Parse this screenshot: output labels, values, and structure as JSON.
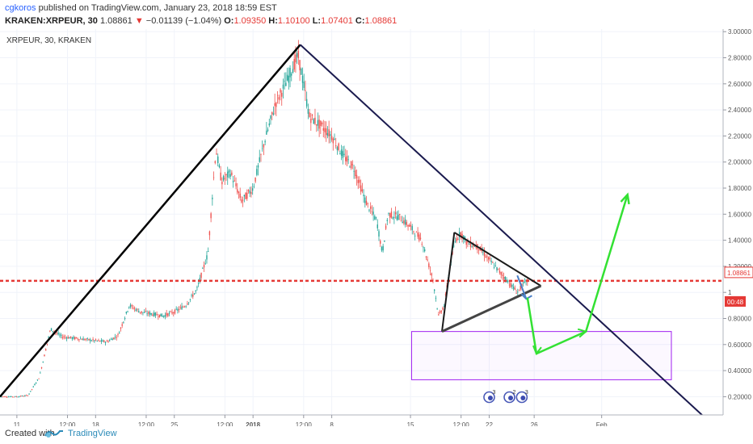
{
  "header": {
    "author": "cgkoros",
    "published_text": "published on TradingView.com, January 23, 2018 18:59 EST",
    "symbol": "KRAKEN:XRPEUR, 30",
    "last": "1.08861",
    "change": "−0.01139 (−1.04%)",
    "open_label": "O:",
    "open": "1.09350",
    "high_label": "H:",
    "high": "1.10100",
    "low_label": "L:",
    "low": "1.07401",
    "close_label": "C:",
    "close": "1.08861"
  },
  "chart_data": {
    "type": "candlestick",
    "legend": "XRPEUR, 30, KRAKEN",
    "ylim": [
      0.06,
      3.02
    ],
    "yticks": [
      "3.00000",
      "2.80000",
      "2.60000",
      "2.40000",
      "2.20000",
      "2.00000",
      "1.80000",
      "1.60000",
      "1.40000",
      "1.20000",
      "1",
      "0.80000",
      "0.60000",
      "0.40000",
      "0.20000"
    ],
    "ytick_values": [
      3.0,
      2.8,
      2.6,
      2.4,
      2.2,
      2.0,
      1.8,
      1.6,
      1.4,
      1.2,
      1.0,
      0.8,
      0.6,
      0.4,
      0.2
    ],
    "xticks": [
      "11",
      "12:00",
      "18",
      "12:00",
      "25",
      "12:00",
      "2018",
      "12:00",
      "8",
      "15",
      "12:00",
      "22",
      "26",
      "Feb"
    ],
    "xtick_days": [
      11,
      15.5,
      18,
      22.5,
      25,
      29.5,
      32,
      36.5,
      39,
      46,
      50.5,
      53,
      57,
      63
    ],
    "xlim": [
      9.5,
      73.8
    ],
    "price_level": 1.08861,
    "price_label": "1.08861",
    "countdown": "00:48",
    "price_path": [
      [
        9.5,
        0.2
      ],
      [
        11,
        0.2
      ],
      [
        12,
        0.21
      ],
      [
        13,
        0.35
      ],
      [
        14,
        0.72
      ],
      [
        15,
        0.66
      ],
      [
        17,
        0.64
      ],
      [
        19,
        0.62
      ],
      [
        20,
        0.67
      ],
      [
        21,
        0.9
      ],
      [
        22,
        0.85
      ],
      [
        24,
        0.82
      ],
      [
        25,
        0.85
      ],
      [
        26,
        0.9
      ],
      [
        27,
        1.02
      ],
      [
        28,
        1.3
      ],
      [
        28.7,
        2.1
      ],
      [
        29.2,
        1.85
      ],
      [
        30,
        1.92
      ],
      [
        31,
        1.7
      ],
      [
        32,
        1.8
      ],
      [
        33,
        2.15
      ],
      [
        34,
        2.45
      ],
      [
        35,
        2.62
      ],
      [
        36,
        2.82
      ],
      [
        36.6,
        2.55
      ],
      [
        37,
        2.35
      ],
      [
        38,
        2.28
      ],
      [
        39,
        2.2
      ],
      [
        40,
        2.05
      ],
      [
        41,
        1.95
      ],
      [
        42,
        1.7
      ],
      [
        43,
        1.55
      ],
      [
        43.5,
        1.3
      ],
      [
        44,
        1.6
      ],
      [
        45,
        1.58
      ],
      [
        46,
        1.5
      ],
      [
        47,
        1.4
      ],
      [
        48,
        1.1
      ],
      [
        48.5,
        0.82
      ],
      [
        49,
        0.9
      ],
      [
        49.5,
        1.2
      ],
      [
        50,
        1.4
      ],
      [
        50.5,
        1.46
      ],
      [
        51,
        1.38
      ],
      [
        52,
        1.35
      ],
      [
        53,
        1.25
      ],
      [
        54,
        1.15
      ],
      [
        55,
        1.05
      ],
      [
        55.5,
        1.0
      ],
      [
        56,
        1.06
      ],
      [
        56.4,
        1.08861
      ]
    ],
    "annotations": {
      "big_triangle": [
        [
          9.5,
          0.2
        ],
        [
          36.2,
          2.9
        ],
        [
          72.3,
          0.03
        ]
      ],
      "small_triangle": [
        [
          48.8,
          0.7
        ],
        [
          49.9,
          1.46
        ],
        [
          57.6,
          1.05
        ]
      ],
      "zone_box": {
        "x": [
          46.1,
          69.2
        ],
        "y": [
          0.33,
          0.7
        ]
      },
      "blue_arrow": [
        [
          55.5,
          1.13
        ],
        [
          56.3,
          0.95
        ]
      ],
      "green_path": [
        [
          56.4,
          0.96
        ],
        [
          57.2,
          0.53
        ],
        [
          61.6,
          0.7
        ],
        [
          65.3,
          1.75
        ]
      ],
      "emoji_label": "3 2 3"
    },
    "colors": {
      "up": "#26a69a",
      "down": "#ef5350",
      "triangle": "#000000",
      "trendline": "#1a1a4e",
      "zone": "#a020f0",
      "arrow": "#33e133",
      "blue_arrow": "#4a7fc7",
      "price_line": "#e53935"
    }
  },
  "footer": {
    "created_with": "Created with",
    "brand": "TradingView"
  }
}
